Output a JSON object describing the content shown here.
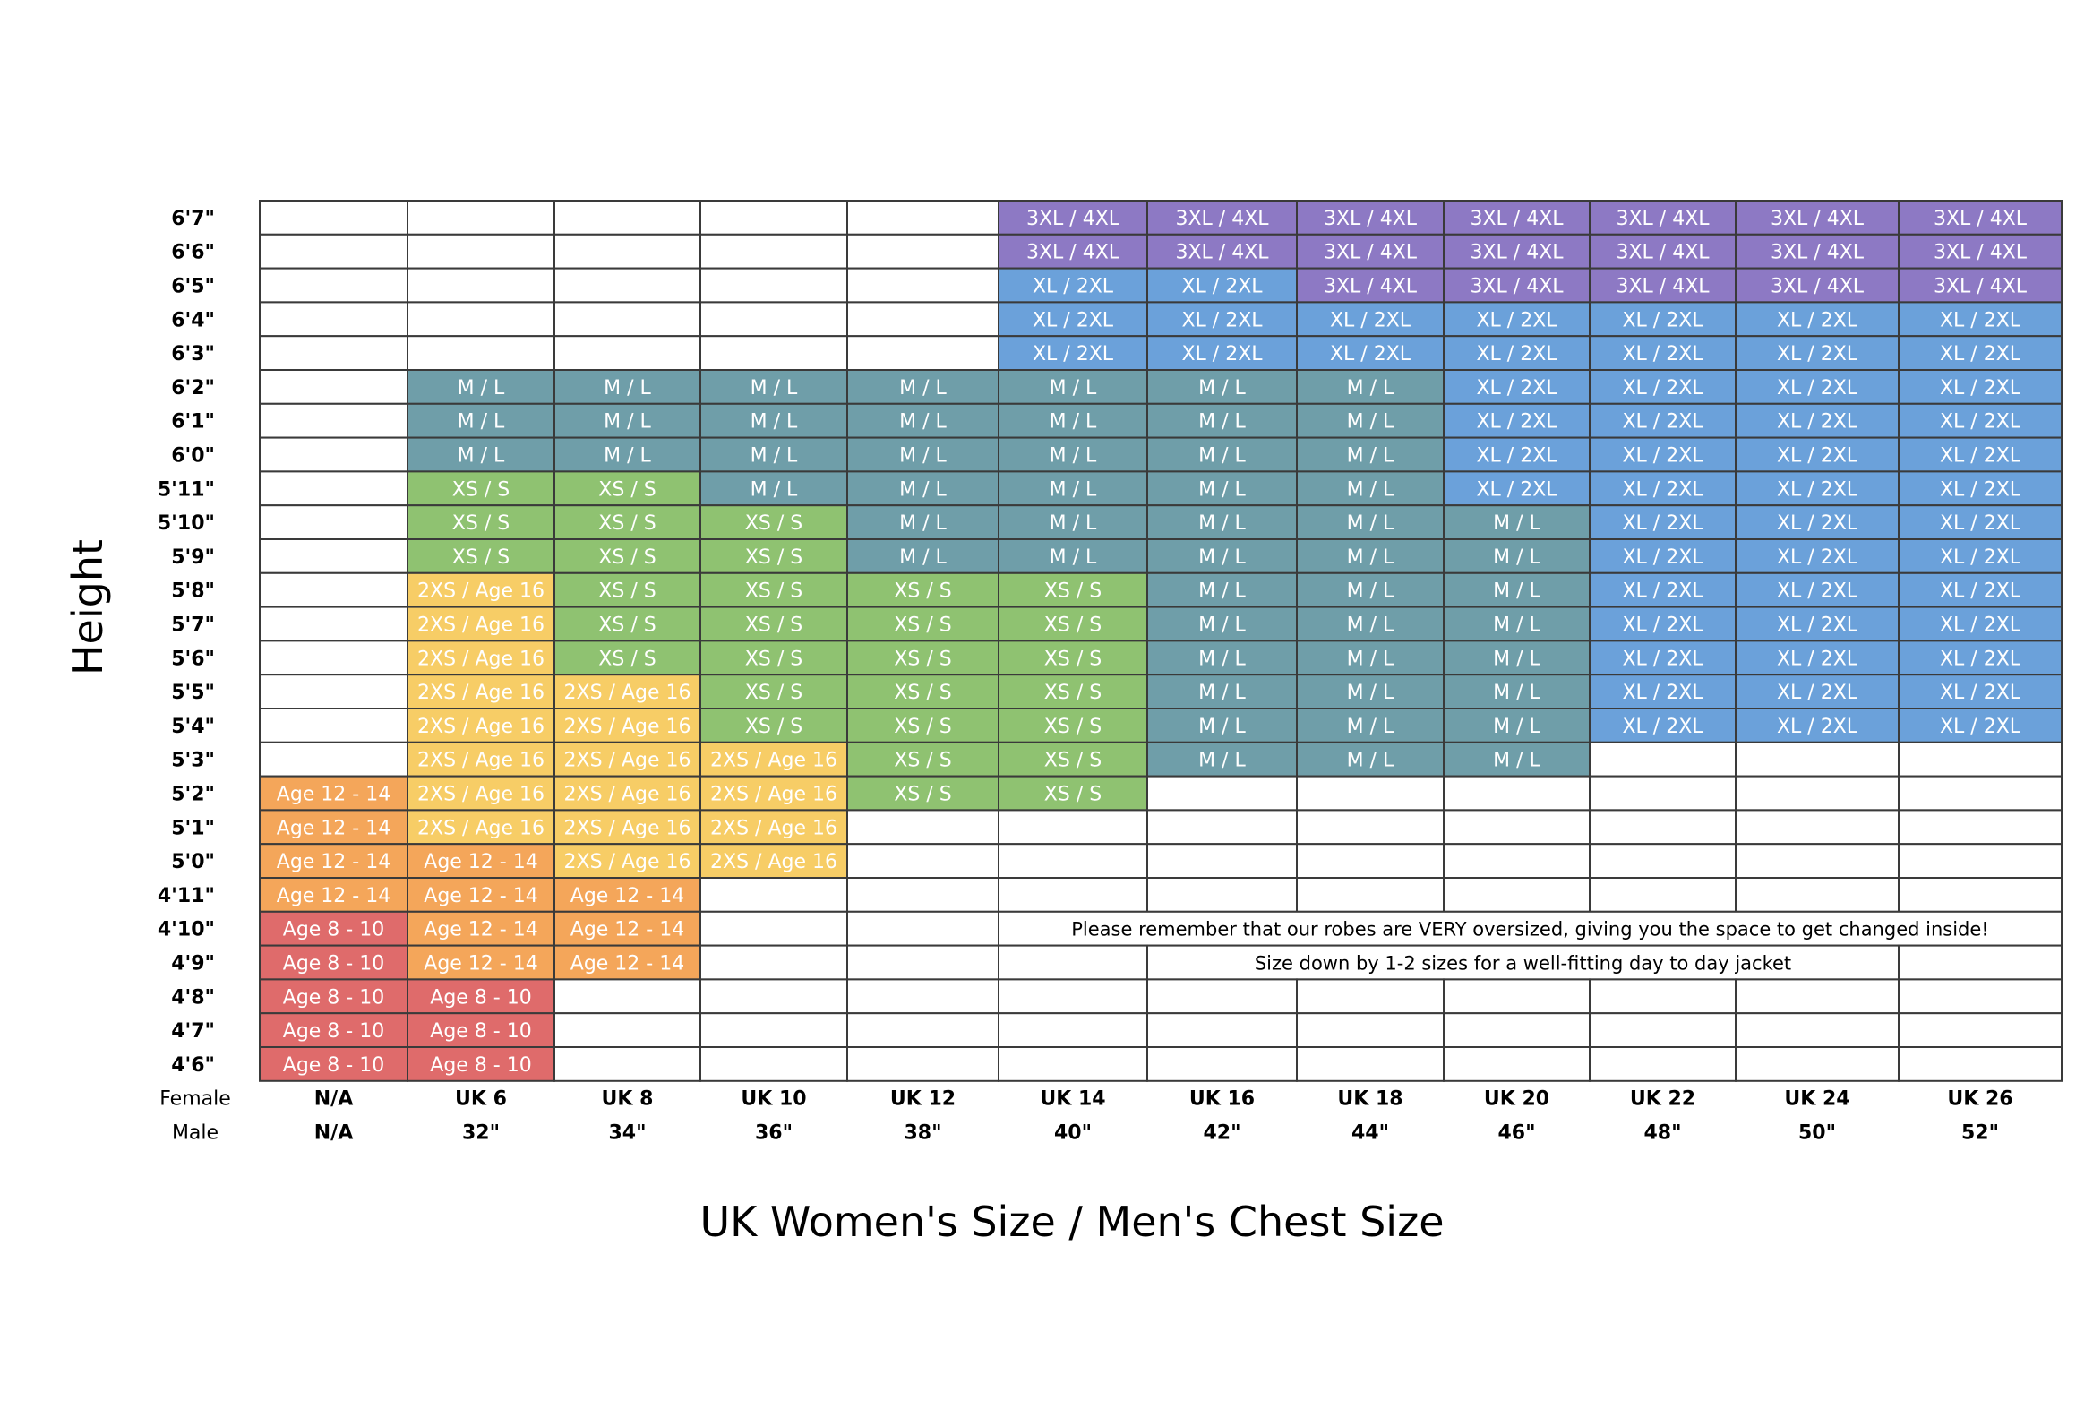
{
  "chart_data": {
    "type": "table",
    "title": "UK Women's Size / Men's Chest Size",
    "ylabel": "Height",
    "column_row_labels": [
      "Female",
      "Male"
    ],
    "female_sizes": [
      "N/A",
      "UK 6",
      "UK 8",
      "UK 10",
      "UK 12",
      "UK 14",
      "UK 16",
      "UK 18",
      "UK 20",
      "UK 22",
      "UK 24",
      "UK 26"
    ],
    "male_sizes": [
      "N/A",
      "32\"",
      "34\"",
      "36\"",
      "38\"",
      "40\"",
      "42\"",
      "44\"",
      "46\"",
      "48\"",
      "50\"",
      "52\""
    ],
    "heights": [
      "6'7\"",
      "6'6\"",
      "6'5\"",
      "6'4\"",
      "6'3\"",
      "6'2\"",
      "6'1\"",
      "6'0\"",
      "5'11\"",
      "5'10\"",
      "5'9\"",
      "5'8\"",
      "5'7\"",
      "5'6\"",
      "5'5\"",
      "5'4\"",
      "5'3\"",
      "5'2\"",
      "5'1\"",
      "5'0\"",
      "4'11\"",
      "4'10\"",
      "4'9\"",
      "4'8\"",
      "4'7\"",
      "4'6\""
    ],
    "categories": {
      "a": {
        "label": "3XL / 4XL",
        "color": "#8d79c4"
      },
      "b": {
        "label": "XL / 2XL",
        "color": "#6ba1da"
      },
      "c": {
        "label": "M / L",
        "color": "#6f9ea9"
      },
      "d": {
        "label": "XS / S",
        "color": "#8fc271"
      },
      "e": {
        "label": "2XS / Age 16",
        "color": "#f7cd66"
      },
      "f": {
        "label": "Age 12 - 14",
        "color": "#f4a65a"
      },
      "g": {
        "label": "Age 8 - 10",
        "color": "#df6b6b"
      }
    },
    "grid": [
      ".....aaaaaaa",
      ".....aaaaaaa",
      ".....bbaaaaa",
      ".....bbbbbbb",
      ".....bbbbbbb",
      ".cccccccbbbb",
      ".cccccccbbbb",
      ".cccccccbbbb",
      ".ddcccccbbbb",
      ".dddcccccbbb",
      ".dddcccccbbb",
      ".eddddcccbbb",
      ".eddddcccbbb",
      ".eddddcccbbb",
      ".eedddcccbbb",
      ".eedddcccbbb",
      ".eeeddccc...",
      "feeedd......",
      "feee........",
      "ffee........",
      "fff.........",
      "gff.........",
      "gff.........",
      "gg..........",
      "gg..........",
      "gg.........."
    ],
    "notes": [
      {
        "row": 21,
        "text": "Please remember that our robes are VERY oversized, giving you the space to get changed inside!"
      },
      {
        "row": 22,
        "text": "Size down by 1-2 sizes for a well-fitting day to day jacket"
      }
    ]
  }
}
